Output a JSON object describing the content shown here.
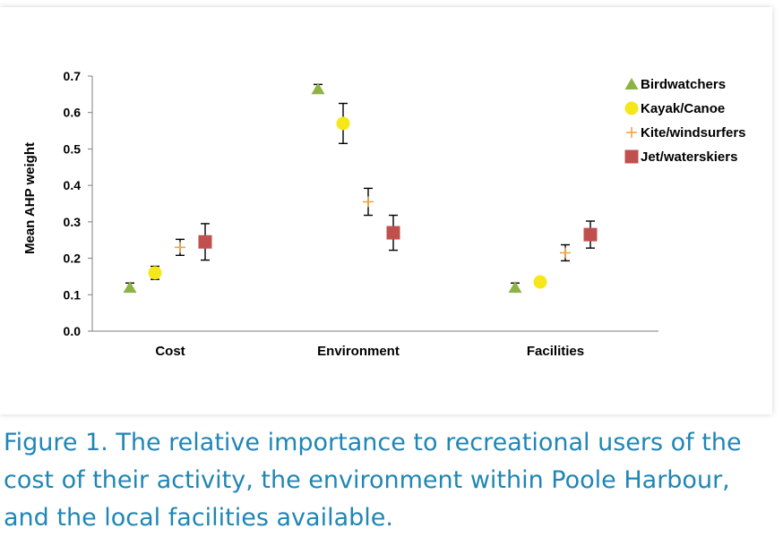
{
  "chart_data": {
    "type": "scatter",
    "title": "",
    "xlabel": "",
    "ylabel": "Mean AHP weight",
    "ylim": [
      0,
      0.7
    ],
    "yticks": [
      "0.0",
      "0.1",
      "0.2",
      "0.3",
      "0.4",
      "0.5",
      "0.6",
      "0.7"
    ],
    "categories": [
      "Cost",
      "Environment",
      "Facilities"
    ],
    "grid": false,
    "legend_position": "top-right",
    "series": [
      {
        "name": "Birdwatchers",
        "marker": "triangle",
        "color": "#8db346",
        "values": [
          0.12,
          0.665,
          0.12
        ],
        "errors": [
          0.012,
          0.012,
          0.012
        ]
      },
      {
        "name": "Kayak/Canoe",
        "marker": "circle",
        "color": "#f5e71a",
        "values": [
          0.16,
          0.57,
          0.135
        ],
        "errors": [
          0.018,
          0.055,
          0.012
        ]
      },
      {
        "name": "Kite/windsurfers",
        "marker": "plus",
        "color": "#f0a542",
        "values": [
          0.23,
          0.355,
          0.215
        ],
        "errors": [
          0.022,
          0.037,
          0.022
        ]
      },
      {
        "name": "Jet/waterskiers",
        "marker": "square",
        "color": "#c0504d",
        "values": [
          0.245,
          0.27,
          0.265
        ],
        "errors": [
          0.05,
          0.048,
          0.037
        ]
      }
    ]
  },
  "caption": {
    "text": "Figure 1. The relative importance to recreational users of the cost of their activity, the environment within Poole Harbour, and the local facilities available."
  }
}
